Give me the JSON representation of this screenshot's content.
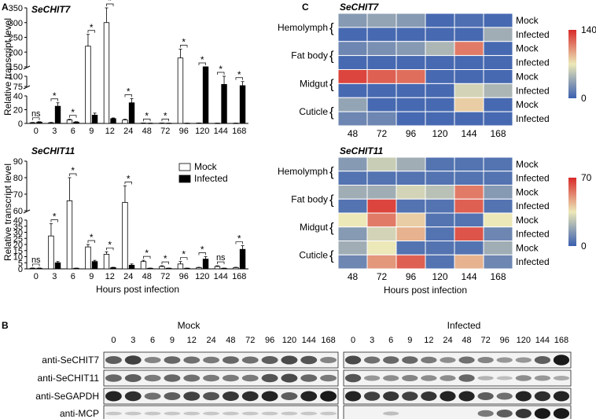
{
  "panel_labels": {
    "a": "A",
    "b": "B",
    "c": "C"
  },
  "colors": {
    "mock_fill": "#ffffff",
    "infected_fill": "#000000",
    "heat_low": "#3a5fb0",
    "heat_mid": "#ece8b8",
    "heat_high": "#d82a2a",
    "blot_bg": "#f3f3f3",
    "blot_band": "#101010"
  },
  "chart_data": [
    {
      "id": "A-top",
      "type": "bar",
      "title": "SeCHIT7",
      "ylabel": "Relative transcript level",
      "categories": [
        "0",
        "3",
        "6",
        "9",
        "12",
        "24",
        "48",
        "72",
        "96",
        "120",
        "144",
        "168"
      ],
      "series": [
        {
          "name": "Mock",
          "values": [
            1,
            1,
            5,
            220,
            300,
            5,
            0.5,
            0.5,
            180,
            0.5,
            0.3,
            0.3
          ],
          "errors": [
            0.5,
            0.5,
            1,
            40,
            60,
            1,
            0.2,
            0.2,
            30,
            0.2,
            0.1,
            0.1
          ]
        },
        {
          "name": "Infected",
          "values": [
            2,
            25,
            2,
            12,
            7,
            30,
            0.3,
            0.3,
            0.3,
            130,
            80,
            77
          ],
          "errors": [
            0.5,
            5,
            0.5,
            3,
            1,
            6,
            0.1,
            0.1,
            0.1,
            20,
            20,
            10
          ]
        }
      ],
      "annotations": [
        "ns",
        "*",
        "*",
        "*",
        "*",
        "*",
        "*",
        "*",
        "*",
        "*",
        "*",
        "*"
      ],
      "ticks": [
        "0",
        "20",
        "40",
        "75",
        "100",
        "150",
        "200",
        "250",
        "300",
        "350"
      ],
      "broken_axis": true
    },
    {
      "id": "A-bottom",
      "type": "bar",
      "title": "SeCHIT11",
      "ylabel": "Relative transcript level",
      "xlabel": "Hours post infection",
      "categories": [
        "0",
        "3",
        "6",
        "9",
        "12",
        "24",
        "48",
        "72",
        "96",
        "120",
        "144",
        "168"
      ],
      "series": [
        {
          "name": "Mock",
          "values": [
            0.5,
            27,
            66,
            18,
            12,
            65,
            6,
            2,
            4,
            1,
            2,
            1
          ],
          "errors": [
            0.2,
            10,
            14,
            2,
            2,
            10,
            1,
            0.5,
            2,
            0.3,
            0.5,
            0.3
          ]
        },
        {
          "name": "Infected",
          "values": [
            0.5,
            5,
            0.5,
            6,
            1,
            3,
            0.5,
            0.5,
            0.5,
            8,
            0.5,
            16
          ],
          "errors": [
            0.2,
            1,
            0.1,
            1,
            0.3,
            1,
            0.1,
            0.1,
            0.1,
            2,
            0.1,
            3
          ]
        }
      ],
      "annotations": [
        "ns",
        "*",
        "*",
        "*",
        "*",
        "*",
        "*",
        "*",
        "*",
        "*",
        "ns",
        "*"
      ],
      "ticks": [
        "0",
        "5",
        "10",
        "15",
        "20",
        "25",
        "30",
        "35",
        "40",
        "60",
        "70",
        "80",
        "90"
      ],
      "broken_axis": true,
      "legend": [
        "Mock",
        "Infected"
      ]
    },
    {
      "id": "C-top",
      "type": "heatmap",
      "title": "SeCHIT7",
      "columns": [
        "48",
        "72",
        "96",
        "120",
        "144",
        "168"
      ],
      "tissues": [
        "Hemolymph",
        "Fat body",
        "Midgut",
        "Cuticle"
      ],
      "row_labels": [
        "Mock",
        "Infected",
        "Mock",
        "Infected",
        "Mock",
        "Infected",
        "Mock",
        "Infected"
      ],
      "values": [
        [
          30,
          35,
          30,
          5,
          8,
          5
        ],
        [
          5,
          5,
          5,
          5,
          5,
          40
        ],
        [
          20,
          25,
          30,
          45,
          110,
          5
        ],
        [
          5,
          5,
          5,
          5,
          5,
          5
        ],
        [
          130,
          120,
          115,
          5,
          5,
          5
        ],
        [
          5,
          5,
          5,
          5,
          60,
          45
        ],
        [
          35,
          5,
          5,
          5,
          80,
          5
        ],
        [
          20,
          20,
          5,
          5,
          5,
          5
        ]
      ],
      "scale_max": "140",
      "scale_min": "0"
    },
    {
      "id": "C-bottom",
      "type": "heatmap",
      "title": "SeCHIT11",
      "xlabel": "Hours post infection",
      "columns": [
        "48",
        "72",
        "96",
        "120",
        "144",
        "168"
      ],
      "tissues": [
        "Hemolymph",
        "Fat body",
        "Midgut",
        "Cuticle"
      ],
      "row_labels": [
        "Mock",
        "Infected",
        "Mock",
        "Infected",
        "Mock",
        "Infected",
        "Mock",
        "Infected"
      ],
      "values": [
        [
          15,
          28,
          20,
          5,
          5,
          5
        ],
        [
          5,
          5,
          5,
          5,
          5,
          5
        ],
        [
          20,
          20,
          30,
          25,
          55,
          15
        ],
        [
          5,
          65,
          5,
          5,
          60,
          5
        ],
        [
          35,
          55,
          40,
          5,
          5,
          35
        ],
        [
          15,
          30,
          45,
          5,
          62,
          10
        ],
        [
          20,
          35,
          5,
          5,
          5,
          20
        ],
        [
          10,
          50,
          60,
          5,
          45,
          10
        ]
      ],
      "scale_max": "70",
      "scale_min": "0"
    }
  ],
  "blot": {
    "mock_title": "Mock",
    "infected_title": "Infected",
    "lanes": [
      "0",
      "3",
      "6",
      "9",
      "12",
      "24",
      "48",
      "72",
      "96",
      "120",
      "144",
      "168"
    ],
    "rows": [
      {
        "label": "anti-SeCHIT7",
        "mock": [
          0.6,
          0.75,
          0.4,
          0.55,
          0.5,
          0.45,
          0.55,
          0.5,
          0.6,
          0.7,
          0.65,
          0.4
        ],
        "infected": [
          0.7,
          0.5,
          0.55,
          0.55,
          0.45,
          0.35,
          0.5,
          0.4,
          0.3,
          0.3,
          0.6,
          0.95
        ]
      },
      {
        "label": "anti-SeCHIT11",
        "mock": [
          0.55,
          0.6,
          0.45,
          0.55,
          0.5,
          0.45,
          0.45,
          0.45,
          0.65,
          0.7,
          0.55,
          0.45
        ],
        "infected": [
          0.65,
          0.3,
          0.35,
          0.4,
          0.35,
          0.35,
          0.55,
          0.15,
          0.1,
          0.35,
          0.3,
          0.2
        ]
      },
      {
        "label": "anti-SeGAPDH",
        "mock": [
          0.9,
          0.85,
          0.5,
          0.6,
          0.75,
          0.65,
          0.8,
          0.85,
          0.9,
          0.6,
          0.9,
          0.95
        ],
        "infected": [
          0.9,
          0.75,
          0.8,
          0.75,
          0.8,
          0.9,
          0.9,
          0.6,
          0.5,
          0.9,
          0.85,
          0.9
        ]
      },
      {
        "label": "anti-MCP",
        "mock": [
          0.05,
          0.05,
          0.05,
          0.05,
          0.05,
          0.05,
          0.05,
          0.05,
          0.05,
          0.05,
          0.05,
          0.05
        ],
        "infected": [
          0,
          0,
          0.1,
          0,
          0,
          0,
          0,
          0.45,
          0.6,
          0.8,
          0.95,
          0.95
        ]
      }
    ]
  }
}
